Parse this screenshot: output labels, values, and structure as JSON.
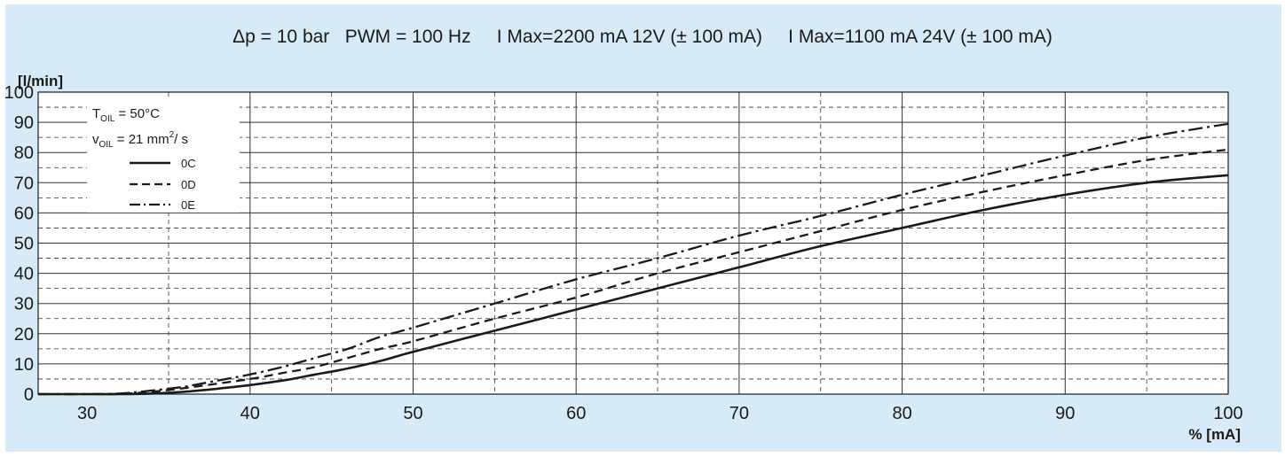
{
  "chart_data": {
    "type": "line",
    "title": "Δp = 10 bar   PWM = 100 Hz     I Max=2200 mA 12V (± 100 mA)     I Max=1100 mA 24V (± 100 mA)",
    "ylabel": "[l/min]",
    "xlabel": "% [mA]",
    "xlim": [
      27,
      100
    ],
    "ylim": [
      0,
      100
    ],
    "x_ticks": [
      30,
      40,
      50,
      60,
      70,
      80,
      90,
      100
    ],
    "y_ticks": [
      0,
      10,
      20,
      30,
      40,
      50,
      60,
      70,
      80,
      90,
      100
    ],
    "grid": true,
    "legend_placement": "top-left",
    "conditions": {
      "temp_label": "T",
      "temp_sub": "OIL",
      "temp_value": " = 50°C",
      "visc_label": "v",
      "visc_sub": "OIL",
      "visc_value": " = 21 mm",
      "visc_sup": "2",
      "visc_unit": "/ s"
    },
    "series": [
      {
        "name": "0C",
        "style": "solid",
        "x": [
          27,
          30,
          32,
          34,
          36,
          38,
          40,
          42,
          44,
          46,
          48,
          50,
          55,
          60,
          65,
          70,
          75,
          80,
          85,
          90,
          95,
          100
        ],
        "y": [
          0,
          0,
          0,
          0.2,
          0.8,
          1.8,
          3,
          4.5,
          6.5,
          8.5,
          11,
          14,
          21,
          28,
          35,
          42,
          49,
          55,
          61,
          66,
          70,
          72.5
        ]
      },
      {
        "name": "0D",
        "style": "dashed",
        "x": [
          27,
          30,
          32,
          34,
          36,
          38,
          40,
          42,
          44,
          46,
          48,
          50,
          55,
          60,
          65,
          70,
          75,
          80,
          85,
          90,
          95,
          100
        ],
        "y": [
          0,
          0,
          0.1,
          0.8,
          2,
          3.5,
          5,
          7,
          9,
          12,
          15,
          17.5,
          25,
          32,
          40,
          47,
          54,
          61,
          67,
          72.5,
          77.5,
          81
        ]
      },
      {
        "name": "0E",
        "style": "dashdot",
        "x": [
          27,
          30,
          32,
          34,
          36,
          38,
          40,
          42,
          44,
          46,
          48,
          50,
          55,
          60,
          65,
          70,
          75,
          80,
          85,
          90,
          95,
          100
        ],
        "y": [
          0,
          0,
          0.2,
          1.2,
          2.5,
          4.5,
          6.5,
          9,
          12,
          15,
          19,
          22,
          30,
          38,
          45,
          52.5,
          59,
          66,
          72.5,
          79,
          85,
          89.5
        ]
      }
    ]
  },
  "colors": {
    "background": "#d6ebf7",
    "plot_area": "#ffffff",
    "line": "#1a1a1a",
    "grid": "#333333"
  }
}
